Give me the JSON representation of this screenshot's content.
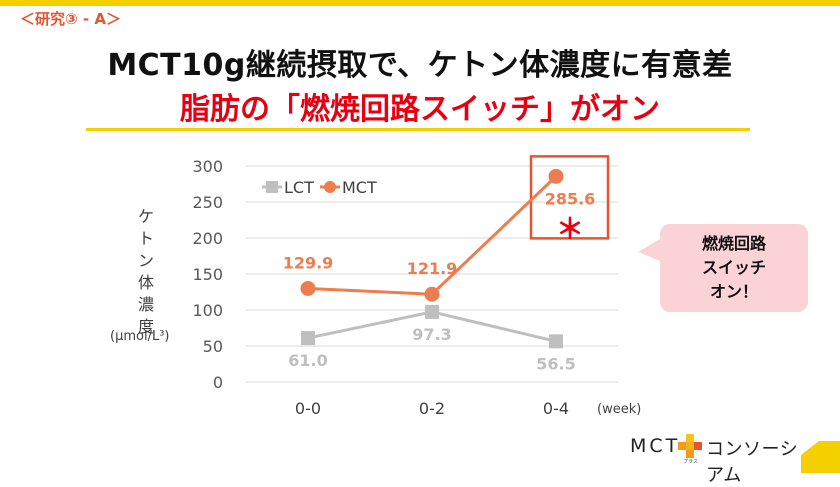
{
  "header": {
    "tag": "＜研究③ - A＞",
    "title_line1": "MCT10g継続摂取で、ケトン体濃度に有意差",
    "title_line2": "脂肪の「燃焼回路スイッチ」がオン"
  },
  "chart_data": {
    "type": "line",
    "categories": [
      "0-0",
      "0-2",
      "0-4"
    ],
    "x_unit": "(week)",
    "ylabel": "ケトン体濃度",
    "yunit": "(μmol/L³)",
    "ylim": [
      0,
      300
    ],
    "yticks": [
      0,
      50,
      100,
      150,
      200,
      250,
      300
    ],
    "grid": true,
    "legend_position": "top-left",
    "series": [
      {
        "name": "LCT",
        "values": [
          61.0,
          97.3,
          56.5
        ],
        "labels": [
          "61.0",
          "97.3",
          "56.5"
        ],
        "color": "#bfbfbf",
        "marker": "square"
      },
      {
        "name": "MCT",
        "values": [
          129.9,
          121.9,
          285.6
        ],
        "labels": [
          "129.9",
          "121.9",
          "285.6"
        ],
        "color": "#ed7d4f",
        "marker": "circle"
      }
    ],
    "annotation": {
      "text": "＊",
      "color": "#e60012"
    },
    "highlight_color": "#e8532e"
  },
  "callout": {
    "lines": [
      "燃焼回路",
      "スイッチ",
      "オン！"
    ]
  },
  "logo": {
    "brand": "MCT",
    "plus": "プラス",
    "name": "コンソーシアム"
  },
  "colors": {
    "accent_yellow": "#f5d000",
    "title_red": "#e60012",
    "callout_pink": "#fbd3d7"
  }
}
